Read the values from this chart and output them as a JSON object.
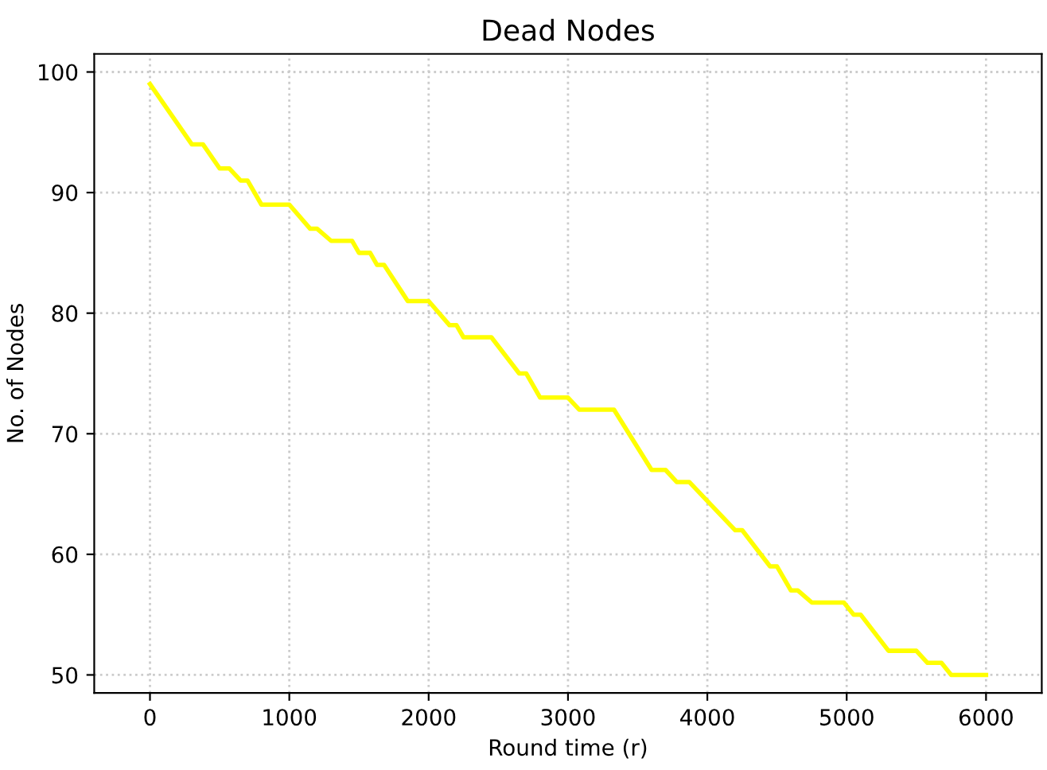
{
  "chart_data": {
    "type": "line",
    "title": "Dead Nodes",
    "xlabel": "Round time (r)",
    "ylabel": "No. of Nodes",
    "series": [
      {
        "color": "#ffff00",
        "x": [
          0,
          300,
          380,
          500,
          570,
          650,
          700,
          800,
          1000,
          1150,
          1200,
          1300,
          1450,
          1500,
          1580,
          1630,
          1680,
          1850,
          2000,
          2150,
          2200,
          2250,
          2450,
          2650,
          2700,
          2800,
          3000,
          3080,
          3330,
          3600,
          3700,
          3780,
          3870,
          4200,
          4250,
          4450,
          4500,
          4600,
          4650,
          4750,
          4980,
          5050,
          5100,
          5300,
          5500,
          5580,
          5680,
          5750,
          6000
        ],
        "values": [
          99,
          94,
          94,
          92,
          92,
          91,
          91,
          89,
          89,
          87,
          87,
          86,
          86,
          85,
          85,
          84,
          84,
          81,
          81,
          79,
          79,
          78,
          78,
          75,
          75,
          73,
          73,
          72,
          72,
          67,
          67,
          66,
          66,
          62,
          62,
          59,
          59,
          57,
          57,
          56,
          56,
          55,
          55,
          52,
          52,
          51,
          51,
          50,
          50
        ]
      }
    ],
    "xlim": [
      -400,
      6400
    ],
    "ylim": [
      48.5,
      101.5
    ],
    "xticks": [
      0,
      1000,
      2000,
      3000,
      4000,
      5000,
      6000
    ],
    "yticks": [
      50,
      60,
      70,
      80,
      90,
      100
    ],
    "grid": true,
    "line_style": "solid",
    "marker": "none"
  }
}
